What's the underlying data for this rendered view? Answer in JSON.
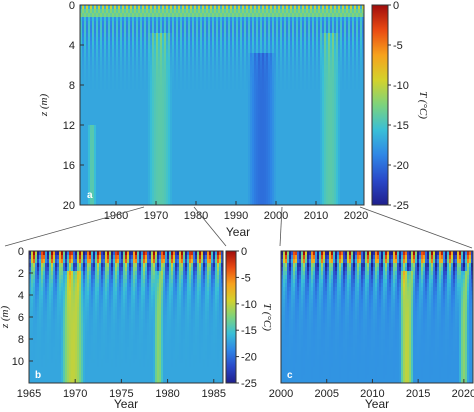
{
  "chart_data": [
    {
      "type": "heatmap",
      "panel": "a",
      "xlabel": "Year",
      "ylabel": "z (m)",
      "xlim": [
        1951,
        2022
      ],
      "ylim": [
        0,
        20
      ],
      "xticks": [
        1960,
        1970,
        1980,
        1990,
        2000,
        2010,
        2020
      ],
      "yticks": [
        0,
        4,
        8,
        12,
        16,
        20
      ],
      "colorbar": {
        "label": "T (°C)",
        "range": [
          -25,
          0
        ],
        "ticks": [
          0,
          -5,
          -10,
          -15,
          -20,
          -25
        ]
      },
      "background_temperature": -17,
      "features": [
        {
          "description": "warm anomaly (about -14 °C)",
          "x": [
            1968,
            1974
          ],
          "z": [
            3,
            20
          ],
          "value": -14
        },
        {
          "description": "warm anomaly (about -14 °C)",
          "x": [
            2011,
            2016
          ],
          "z": [
            3,
            20
          ],
          "value": -14
        },
        {
          "description": "cold anomaly (about -20 °C)",
          "x": [
            1993,
            2000
          ],
          "z": [
            5,
            20
          ],
          "value": -20
        },
        {
          "description": "warm anomaly (about -14 °C)",
          "x": [
            1953,
            1955
          ],
          "z": [
            12,
            20
          ],
          "value": -14
        }
      ]
    },
    {
      "type": "heatmap",
      "panel": "b",
      "xlabel": "Year",
      "ylabel": "z (m)",
      "xlim": [
        1965,
        1986
      ],
      "ylim": [
        0,
        12
      ],
      "xticks": [
        1965,
        1970,
        1975,
        1980,
        1985
      ],
      "yticks": [
        0,
        2,
        4,
        6,
        8,
        10
      ],
      "colorbar": {
        "label": "T (°C)",
        "range": [
          -25,
          0
        ],
        "ticks": [
          0,
          -5,
          -10,
          -15,
          -20,
          -25
        ]
      },
      "background_temperature": -17,
      "features": [
        {
          "description": "warm anomaly (about -10 °C)",
          "x": [
            1968.5,
            1971
          ],
          "z": [
            2,
            12
          ],
          "value": -10
        },
        {
          "description": "warm anomaly (about -12 °C)",
          "x": [
            1978.5,
            1979.5
          ],
          "z": [
            2,
            12
          ],
          "value": -12
        }
      ]
    },
    {
      "type": "heatmap",
      "panel": "c",
      "xlabel": "Year",
      "ylabel": "",
      "xlim": [
        2000,
        2021
      ],
      "ylim": [
        0,
        12
      ],
      "xticks": [
        2000,
        2005,
        2010,
        2015,
        2020
      ],
      "yticks": [],
      "colorbar": {
        "label": "T (°C)",
        "range": [
          -25,
          0
        ],
        "ticks": [
          0,
          -5,
          -10,
          -15,
          -20,
          -25
        ]
      },
      "background_temperature": -18,
      "features": [
        {
          "description": "warm anomaly (about -10 °C)",
          "x": [
            2013,
            2014.5
          ],
          "z": [
            2,
            12
          ],
          "value": -10
        },
        {
          "description": "warm anomaly (about -12 °C)",
          "x": [
            2019.5,
            2020.5
          ],
          "z": [
            2,
            12
          ],
          "value": -12
        }
      ]
    }
  ],
  "colormap": [
    "#1f1f8c",
    "#2a49c9",
    "#2f86e6",
    "#39bfd7",
    "#7cd37d",
    "#d3d22c",
    "#f7a21c",
    "#e94a12",
    "#a00c0c"
  ],
  "panel_labels": {
    "a": "a",
    "b": "b",
    "c": "c"
  }
}
